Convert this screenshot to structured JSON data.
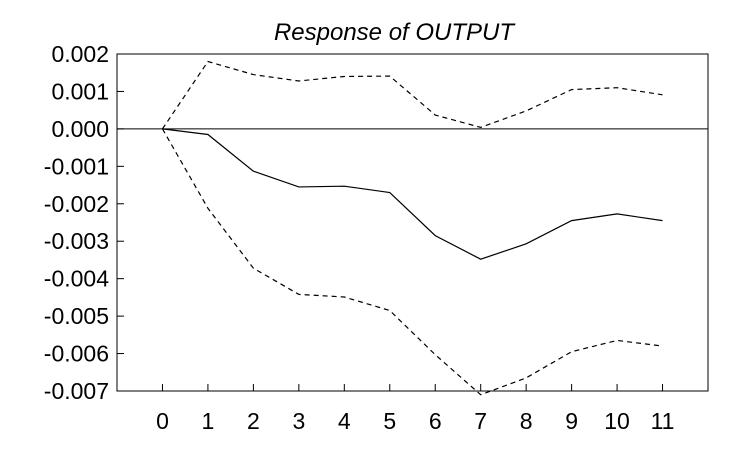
{
  "chart_data": {
    "type": "line",
    "title": "Response of OUTPUT",
    "xlabel": "",
    "ylabel": "",
    "x": [
      0,
      1,
      2,
      3,
      4,
      5,
      6,
      7,
      8,
      9,
      10,
      11
    ],
    "xlim": [
      -1,
      12
    ],
    "ylim": [
      -0.007,
      0.002
    ],
    "x_ticks": [
      0,
      1,
      2,
      3,
      4,
      5,
      6,
      7,
      8,
      9,
      10,
      11
    ],
    "x_tick_labels": [
      "0",
      "1",
      "2",
      "3",
      "4",
      "5",
      "6",
      "7",
      "8",
      "9",
      "10",
      "11"
    ],
    "y_ticks": [
      0.002,
      0.001,
      0.0,
      -0.001,
      -0.002,
      -0.003,
      -0.004,
      -0.005,
      -0.006,
      -0.007
    ],
    "y_tick_labels": [
      "0.002",
      "0.001",
      "0.000",
      "-0.001",
      "-0.002",
      "-0.003",
      "-0.004",
      "-0.005",
      "-0.006",
      "-0.007"
    ],
    "zero_line": true,
    "grid": false,
    "legend": "none",
    "series": [
      {
        "style": "solid",
        "color": "#000000",
        "values": [
          0.0,
          -0.00015,
          -0.00113,
          -0.00155,
          -0.00153,
          -0.0017,
          -0.00285,
          -0.00348,
          -0.00307,
          -0.00245,
          -0.00227,
          -0.00245
        ]
      },
      {
        "style": "dashed",
        "color": "#000000",
        "values": [
          0.0,
          0.0018,
          0.00145,
          0.00128,
          0.0014,
          0.00141,
          0.00037,
          4e-05,
          0.00048,
          0.00105,
          0.0011,
          0.00091
        ]
      },
      {
        "style": "dashed",
        "color": "#000000",
        "values": [
          0.0,
          -0.00212,
          -0.00372,
          -0.00442,
          -0.00449,
          -0.00485,
          -0.00603,
          -0.0071,
          -0.00665,
          -0.00595,
          -0.00565,
          -0.0058
        ]
      }
    ]
  }
}
